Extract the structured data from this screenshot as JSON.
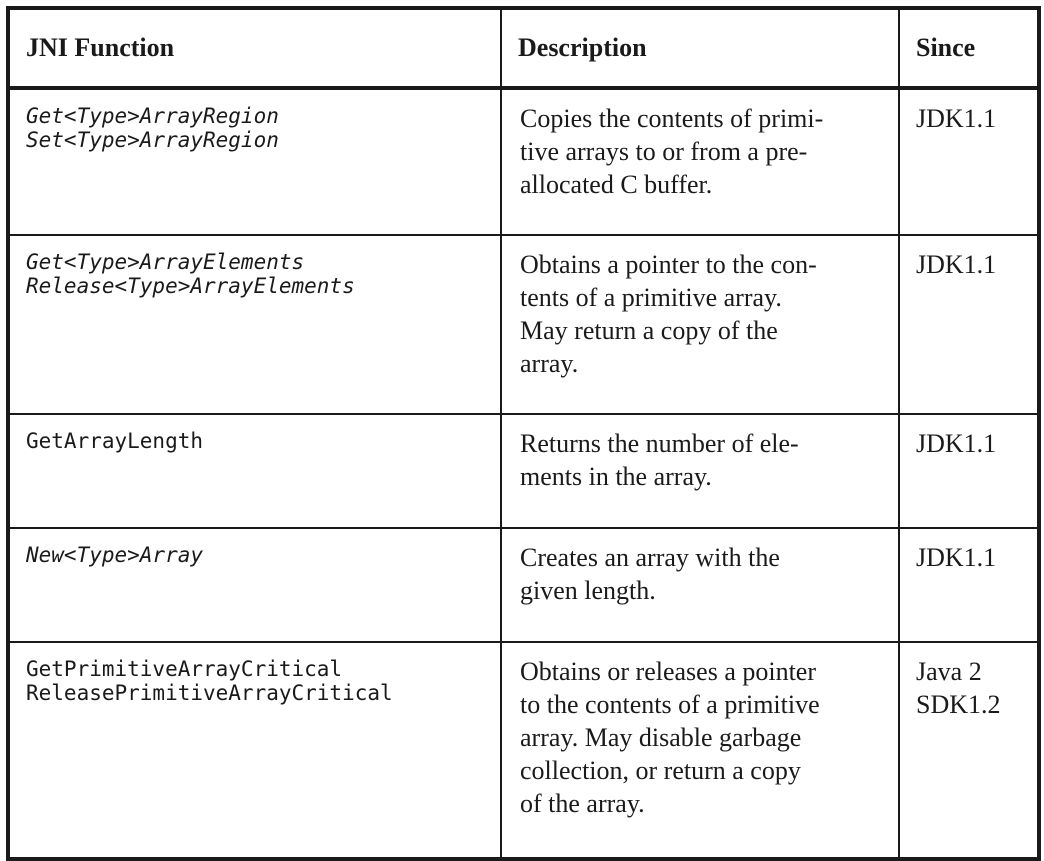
{
  "table": {
    "headers": {
      "function": "JNI Function",
      "description": "Description",
      "since": "Since"
    },
    "rows": [
      {
        "functions": [
          "Get<Type>ArrayRegion",
          "Set<Type>ArrayRegion"
        ],
        "italic": true,
        "description": [
          "Copies the contents of primi-",
          "tive arrays to or from a pre-",
          "allocated C buffer."
        ],
        "since": [
          "JDK1.1"
        ]
      },
      {
        "functions": [
          "Get<Type>ArrayElements",
          "Release<Type>ArrayElements"
        ],
        "italic": true,
        "description": [
          "Obtains a pointer to the con-",
          "tents of a primitive array.",
          "May return a copy of the",
          "array."
        ],
        "since": [
          "JDK1.1"
        ]
      },
      {
        "functions": [
          "GetArrayLength"
        ],
        "italic": false,
        "description": [
          "Returns the number of ele-",
          "ments in the array."
        ],
        "since": [
          "JDK1.1"
        ]
      },
      {
        "functions": [
          "New<Type>Array"
        ],
        "italic": true,
        "description": [
          "Creates an array with the",
          "given length."
        ],
        "since": [
          "JDK1.1"
        ]
      },
      {
        "functions": [
          "GetPrimitiveArrayCritical",
          "ReleasePrimitiveArrayCritical"
        ],
        "italic": false,
        "description": [
          "Obtains or releases a pointer",
          "to the contents of a primitive",
          "array. May disable garbage",
          "collection, or return a copy",
          "of the array."
        ],
        "since": [
          "Java 2",
          "SDK1.2"
        ]
      }
    ]
  }
}
